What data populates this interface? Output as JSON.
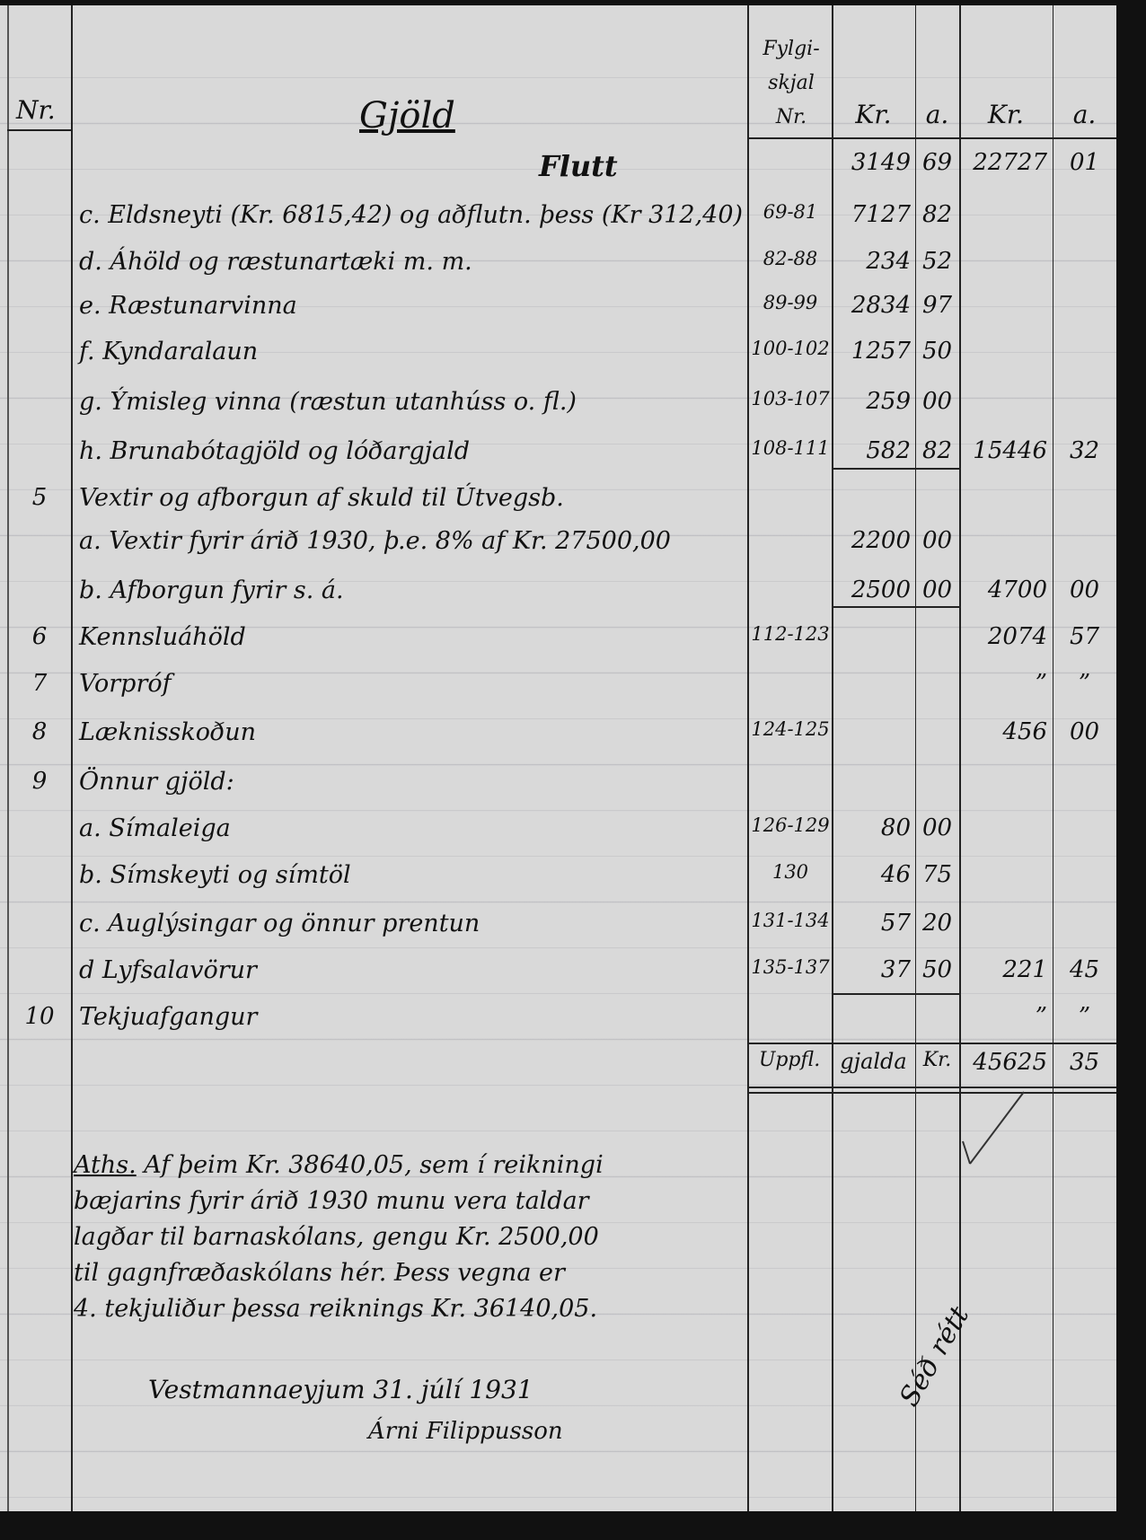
{
  "header": {
    "no_label": "Nr.",
    "title": "Gjöld",
    "ref_label": "Fylgi-skjal Nr.",
    "kr_label": "Kr.",
    "a_label": "a.",
    "kr2_label": "Kr.",
    "a2_label": "a."
  },
  "rows": [
    {
      "no": "",
      "text": "Flutt",
      "ref": "",
      "kr1": "3149",
      "a1": "69",
      "kr2": "22727",
      "a2": "01"
    },
    {
      "no": "",
      "text": "c. Eldsneyti (Kr. 6815,42) og aðflutn. þess (Kr 312,40)",
      "ref": "69-81",
      "kr1": "7127",
      "a1": "82",
      "kr2": "",
      "a2": ""
    },
    {
      "no": "",
      "text": "d. Áhöld og ræstunartæki m. m.",
      "ref": "82-88",
      "kr1": "234",
      "a1": "52",
      "kr2": "",
      "a2": ""
    },
    {
      "no": "",
      "text": "e. Ræstunarvinna",
      "ref": "89-99",
      "kr1": "2834",
      "a1": "97",
      "kr2": "",
      "a2": ""
    },
    {
      "no": "",
      "text": "f. Kyndaralaun",
      "ref": "100-102",
      "kr1": "1257",
      "a1": "50",
      "kr2": "",
      "a2": ""
    },
    {
      "no": "",
      "text": "g. Ýmisleg vinna (ræstun utanhúss o. fl.)",
      "ref": "103-107",
      "kr1": "259",
      "a1": "00",
      "kr2": "",
      "a2": ""
    },
    {
      "no": "",
      "text": "h. Brunabótagjöld og lóðargjald",
      "ref": "108-111",
      "kr1": "582",
      "a1": "82",
      "kr2": "15446",
      "a2": "32"
    },
    {
      "no": "5",
      "text": "Vextir og afborgun af skuld til Útvegsb.",
      "ref": "",
      "kr1": "",
      "a1": "",
      "kr2": "",
      "a2": ""
    },
    {
      "no": "",
      "text": "a. Vextir fyrir árið 1930, þ.e. 8% af Kr. 27500,00",
      "ref": "",
      "kr1": "2200",
      "a1": "00",
      "kr2": "",
      "a2": ""
    },
    {
      "no": "",
      "text": "b. Afborgun fyrir s. á.",
      "ref": "",
      "kr1": "2500",
      "a1": "00",
      "kr2": "4700",
      "a2": "00"
    },
    {
      "no": "6",
      "text": "Kennsluáhöld",
      "ref": "112-123",
      "kr1": "",
      "a1": "",
      "kr2": "2074",
      "a2": "57"
    },
    {
      "no": "7",
      "text": "Vorpróf",
      "ref": "",
      "kr1": "",
      "a1": "",
      "kr2": "”",
      "a2": "”"
    },
    {
      "no": "8",
      "text": "Læknisskoðun",
      "ref": "124-125",
      "kr1": "",
      "a1": "",
      "kr2": "456",
      "a2": "00"
    },
    {
      "no": "9",
      "text": "Önnur gjöld:",
      "ref": "",
      "kr1": "",
      "a1": "",
      "kr2": "",
      "a2": ""
    },
    {
      "no": "",
      "text": "a. Símaleiga",
      "ref": "126-129",
      "kr1": "80",
      "a1": "00",
      "kr2": "",
      "a2": ""
    },
    {
      "no": "",
      "text": "b. Símskeyti og símtöl",
      "ref": "130",
      "kr1": "46",
      "a1": "75",
      "kr2": "",
      "a2": ""
    },
    {
      "no": "",
      "text": "c. Auglýsingar og önnur prentun",
      "ref": "131-134",
      "kr1": "57",
      "a1": "20",
      "kr2": "",
      "a2": ""
    },
    {
      "no": "",
      "text": "d Lyfsalavörur",
      "ref": "135-137",
      "kr1": "37",
      "a1": "50",
      "kr2": "221",
      "a2": "45"
    },
    {
      "no": "10",
      "text": "Tekjuafgangur",
      "ref": "",
      "kr1": "",
      "a1": "",
      "kr2": "”",
      "a2": "”"
    }
  ],
  "total": {
    "label1": "Uppfl.",
    "label2": "gjalda",
    "label3": "Kr.",
    "kr": "45625",
    "a": "35"
  },
  "note": {
    "label": "Aths.",
    "lines": [
      "Af þeim Kr. 38640,05, sem í reikningi",
      "bæjarins fyrir árið 1930 munu vera taldar",
      "lagðar til barnaskólans, gengu Kr. 2500,00",
      "til gagnfræðaskólans hér. Þess vegna er",
      "4. tekjuliður þessa reiknings Kr. 36140,05."
    ]
  },
  "footer": {
    "place_date": "Vestmannaeyjum 31. júlí 1931",
    "signature": "Árni Filippusson",
    "audit_mark": "Séð rétt"
  },
  "colors": {
    "paper": "#d9d9d9",
    "ink": "#111111",
    "scan_border": "#111111"
  }
}
